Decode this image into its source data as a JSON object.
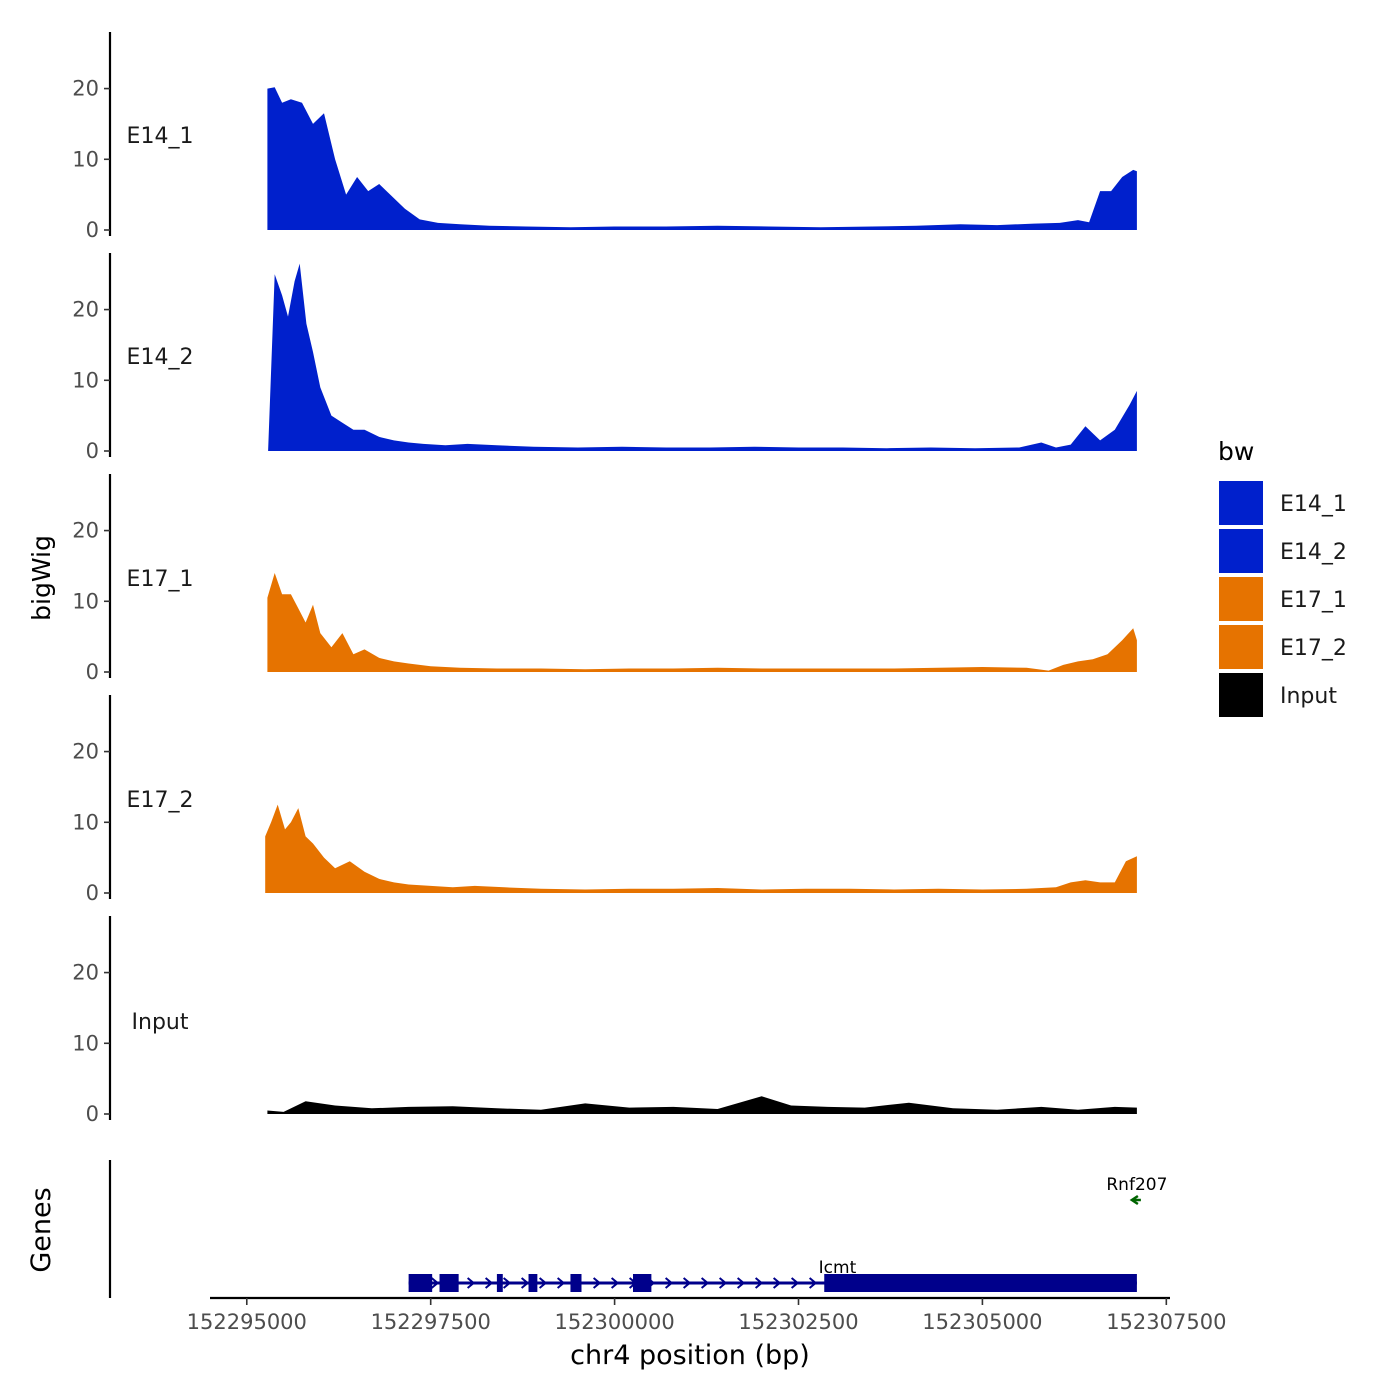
{
  "chart_data": {
    "type": "area",
    "xlabel": "chr4 position (bp)",
    "ylabel": "bigWig",
    "genes_label": "Genes",
    "x_range": [
      152294500,
      152307550
    ],
    "ylim": [
      0,
      28
    ],
    "x_ticks": [
      152295000,
      152297500,
      152300000,
      152302500,
      152305000,
      152307500
    ],
    "x_tick_labels": [
      "152295000",
      "152297500",
      "152300000",
      "152302500",
      "152305000",
      "152307500"
    ],
    "y_ticks": [
      0,
      10,
      20
    ],
    "y_tick_labels": [
      "0",
      "10",
      "20"
    ],
    "legend": {
      "title": "bw",
      "entries": [
        {
          "label": "E14_1",
          "color": "#0020CC"
        },
        {
          "label": "E14_2",
          "color": "#0020CC"
        },
        {
          "label": "E17_1",
          "color": "#E67300"
        },
        {
          "label": "E17_2",
          "color": "#E67300"
        },
        {
          "label": "Input",
          "color": "#000000"
        }
      ]
    },
    "series": [
      {
        "name": "E14_1",
        "color": "#0020CC",
        "x": [
          152295280,
          152295380,
          152295480,
          152295600,
          152295750,
          152295900,
          152296050,
          152296200,
          152296350,
          152296500,
          152296650,
          152296800,
          152296950,
          152297150,
          152297350,
          152297600,
          152297900,
          152298300,
          152298800,
          152299400,
          152300000,
          152300700,
          152301400,
          152302100,
          152302800,
          152303500,
          152304100,
          152304700,
          152305200,
          152305700,
          152306050,
          152306300,
          152306450,
          152306600,
          152306750,
          152306900,
          152307050,
          152307100
        ],
        "values": [
          20,
          20.2,
          18,
          18.5,
          18,
          15,
          16.5,
          10,
          5,
          7.5,
          5.5,
          6.5,
          5,
          3,
          1.5,
          1,
          0.8,
          0.6,
          0.5,
          0.4,
          0.5,
          0.5,
          0.6,
          0.5,
          0.4,
          0.5,
          0.6,
          0.8,
          0.7,
          0.9,
          1.0,
          1.4,
          1.1,
          5.5,
          5.5,
          7.5,
          8.5,
          8.3
        ]
      },
      {
        "name": "E14_2",
        "color": "#0020CC",
        "x": [
          152295290,
          152295380,
          152295480,
          152295560,
          152295650,
          152295720,
          152295810,
          152295900,
          152296000,
          152296150,
          152296300,
          152296450,
          152296600,
          152296800,
          152297000,
          152297200,
          152297400,
          152297700,
          152298000,
          152298400,
          152298900,
          152299500,
          152300100,
          152300700,
          152301300,
          152301900,
          152302500,
          152303100,
          152303700,
          152304300,
          152304900,
          152305500,
          152305800,
          152306000,
          152306200,
          152306400,
          152306600,
          152306800,
          152307000,
          152307100
        ],
        "values": [
          0,
          25,
          22,
          19,
          24,
          26.5,
          18,
          14,
          9,
          5,
          4,
          3,
          3,
          2,
          1.5,
          1.2,
          1,
          0.8,
          1.0,
          0.8,
          0.6,
          0.5,
          0.6,
          0.5,
          0.5,
          0.6,
          0.5,
          0.5,
          0.4,
          0.5,
          0.4,
          0.5,
          1.2,
          0.5,
          0.9,
          3.5,
          1.5,
          3.0,
          6.5,
          8.5
        ]
      },
      {
        "name": "E17_1",
        "color": "#E67300",
        "x": [
          152295280,
          152295380,
          152295480,
          152295600,
          152295700,
          152295800,
          152295900,
          152296000,
          152296150,
          152296300,
          152296450,
          152296600,
          152296800,
          152297000,
          152297200,
          152297500,
          152297900,
          152298400,
          152299000,
          152299600,
          152300200,
          152300800,
          152301400,
          152302000,
          152302600,
          152303200,
          152303800,
          152304400,
          152305000,
          152305600,
          152305900,
          152306100,
          152306300,
          152306500,
          152306700,
          152306900,
          152307050,
          152307100
        ],
        "values": [
          10.5,
          14,
          11,
          11,
          9,
          7,
          9.5,
          5.5,
          3.5,
          5.5,
          2.5,
          3.2,
          2.0,
          1.5,
          1.2,
          0.8,
          0.6,
          0.5,
          0.5,
          0.4,
          0.5,
          0.5,
          0.6,
          0.5,
          0.5,
          0.5,
          0.5,
          0.6,
          0.7,
          0.6,
          0.2,
          1.0,
          1.5,
          1.8,
          2.5,
          4.5,
          6.2,
          4.5
        ]
      },
      {
        "name": "E17_2",
        "color": "#E67300",
        "x": [
          152295250,
          152295330,
          152295420,
          152295520,
          152295600,
          152295700,
          152295800,
          152295900,
          152296050,
          152296200,
          152296400,
          152296600,
          152296800,
          152297000,
          152297200,
          152297500,
          152297800,
          152298100,
          152298500,
          152299000,
          152299600,
          152300200,
          152300800,
          152301400,
          152302000,
          152302600,
          152303200,
          152303800,
          152304400,
          152305000,
          152305600,
          152306000,
          152306200,
          152306400,
          152306600,
          152306800,
          152306950,
          152307100
        ],
        "values": [
          8,
          10,
          12.5,
          9,
          10,
          12,
          8,
          7,
          5,
          3.5,
          4.5,
          3.0,
          2.0,
          1.5,
          1.2,
          1.0,
          0.8,
          1.0,
          0.8,
          0.6,
          0.5,
          0.6,
          0.6,
          0.7,
          0.5,
          0.6,
          0.6,
          0.5,
          0.6,
          0.5,
          0.6,
          0.8,
          1.5,
          1.8,
          1.5,
          1.5,
          4.5,
          5.2
        ]
      },
      {
        "name": "Input",
        "color": "#000000",
        "x": [
          152295280,
          152295500,
          152295800,
          152296200,
          152296700,
          152297200,
          152297800,
          152298400,
          152299000,
          152299600,
          152300200,
          152300800,
          152301400,
          152302000,
          152302400,
          152302900,
          152303400,
          152304000,
          152304600,
          152305200,
          152305800,
          152306300,
          152306800,
          152307100
        ],
        "values": [
          0.5,
          0.3,
          1.8,
          1.2,
          0.8,
          1.0,
          1.1,
          0.8,
          0.6,
          1.5,
          0.9,
          1.0,
          0.7,
          2.5,
          1.2,
          1.0,
          0.9,
          1.6,
          0.8,
          0.6,
          1.0,
          0.6,
          1.0,
          0.9
        ]
      }
    ],
    "genes": [
      {
        "name": "Icmt",
        "strand": "+",
        "color": "#00008B",
        "start": 152297200,
        "end": 152307100,
        "exons": [
          [
            152297200,
            152297520
          ],
          [
            152297620,
            152297880
          ],
          [
            152298400,
            152298480
          ],
          [
            152298830,
            152298950
          ],
          [
            152299400,
            152299550
          ],
          [
            152300250,
            152300500
          ],
          [
            152302850,
            152307100
          ]
        ]
      },
      {
        "name": "Rnf207",
        "strand": "-",
        "color": "#006400",
        "start": 152307000,
        "end": 152307100,
        "exons": []
      }
    ]
  }
}
